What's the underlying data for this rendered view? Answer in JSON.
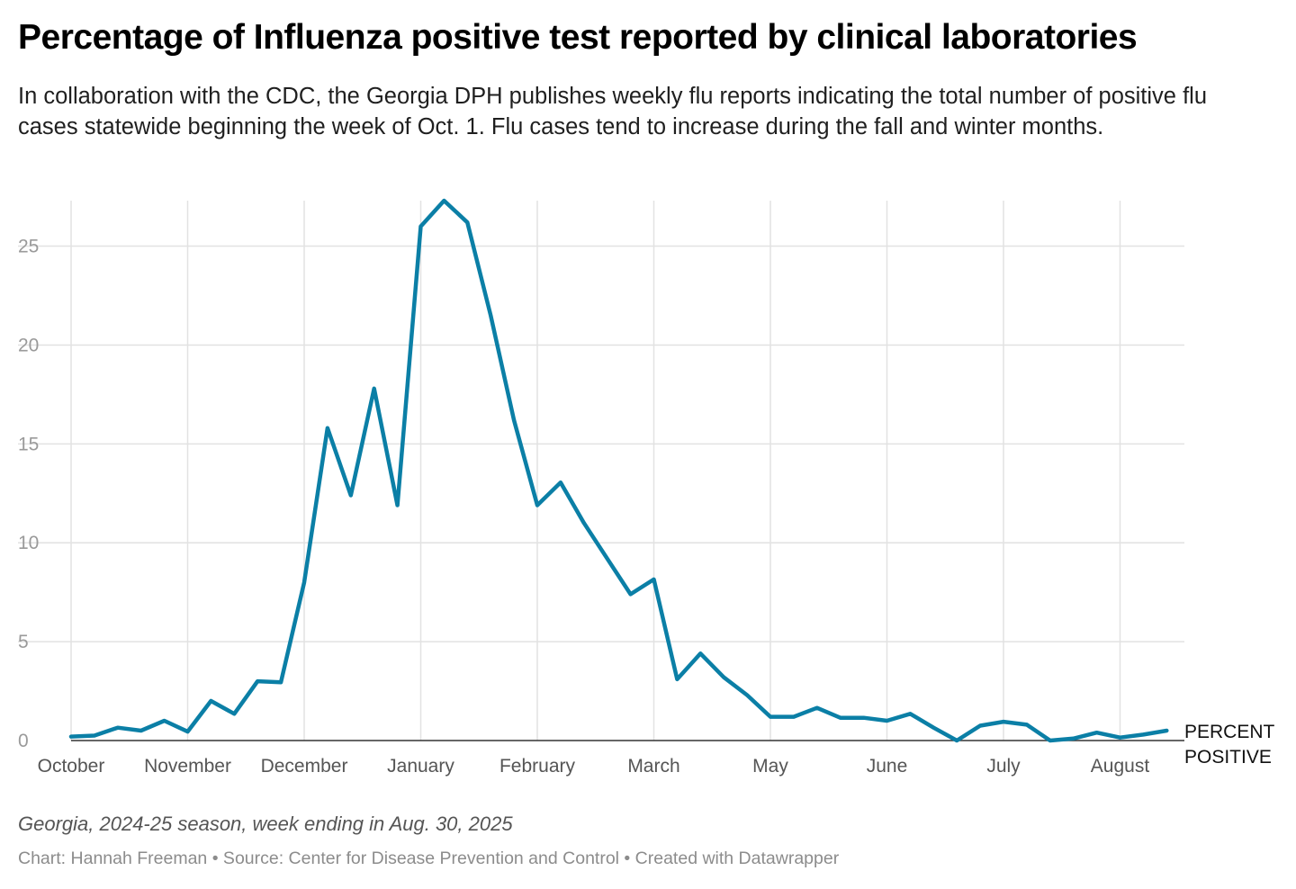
{
  "header": {
    "title": "Percentage of Influenza positive test reported by clinical laboratories",
    "subtitle": "In collaboration with the CDC, the Georgia DPH publishes weekly flu reports indicating the total number of positive flu cases statewide beginning the week of Oct. 1. Flu cases tend to increase during the fall and winter months."
  },
  "footer": {
    "note": "Georgia, 2024-25 season, week ending in Aug. 30, 2025",
    "credit": "Chart: Hannah Freeman • Source: Center for Disease Prevention and Control • Created with Datawrapper"
  },
  "chart_data": {
    "type": "line",
    "title": "Percentage of Influenza positive test reported by clinical laboratories",
    "xlabel": "",
    "ylabel": "",
    "ylim": [
      0,
      27.3
    ],
    "yticks": [
      0,
      5,
      10,
      15,
      20,
      25
    ],
    "grid": true,
    "line_color": "#0b7fa6",
    "x_ticks": [
      "October",
      "November",
      "December",
      "January",
      "February",
      "March",
      "May",
      "June",
      "July",
      "August"
    ],
    "x_tick_weeks": [
      0,
      5,
      10,
      15,
      20,
      25,
      30,
      35,
      40,
      45
    ],
    "series": [
      {
        "name": "PERCENT POSITIVE",
        "label_lines": [
          "PERCENT",
          "POSITIVE"
        ],
        "weeks": [
          0,
          1,
          2,
          3,
          4,
          5,
          6,
          7,
          8,
          9,
          10,
          11,
          12,
          13,
          14,
          15,
          16,
          17,
          18,
          19,
          20,
          21,
          22,
          23,
          24,
          25,
          26,
          27,
          28,
          29,
          30,
          31,
          32,
          33,
          34,
          35,
          36,
          37,
          38,
          39,
          40,
          41,
          42,
          43,
          44,
          45,
          46,
          47
        ],
        "values": [
          0.2,
          0.25,
          0.65,
          0.5,
          1.0,
          0.45,
          2.0,
          1.35,
          3.0,
          2.95,
          8.0,
          15.8,
          12.4,
          17.8,
          11.9,
          26.0,
          27.3,
          26.2,
          21.5,
          16.2,
          11.9,
          13.05,
          11.0,
          9.2,
          7.4,
          8.15,
          3.1,
          4.4,
          3.2,
          2.3,
          1.2,
          1.2,
          1.65,
          1.15,
          1.15,
          1.0,
          1.35,
          0.65,
          0.0,
          0.75,
          0.95,
          0.8,
          0.0,
          0.1,
          0.4,
          0.15,
          0.3,
          0.5
        ]
      }
    ]
  }
}
